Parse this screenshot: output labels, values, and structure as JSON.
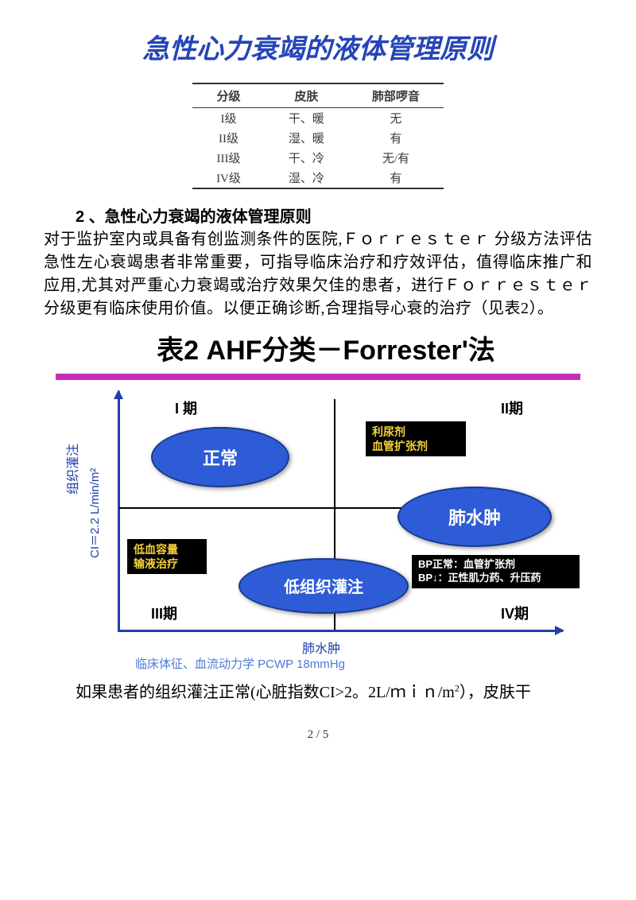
{
  "title": "急性心力衰竭的液体管理原则",
  "table1": {
    "headers": [
      "分级",
      "皮肤",
      "肺部啰音"
    ],
    "rows": [
      [
        "I级",
        "干、暖",
        "无"
      ],
      [
        "II级",
        "湿、暖",
        "有"
      ],
      [
        "III级",
        "干、冷",
        "无/有"
      ],
      [
        "IV级",
        "湿、冷",
        "有"
      ]
    ]
  },
  "section2_heading": "2 、急性心力衰竭的液体管理原则",
  "para1": "对于监护室内或具备有创监测条件的医院,Ｆｏｒｒｅｓｔｅｒ 分级方法评估急性左心衰竭患者非常重要，可指导临床治疗和疗效评估，值得临床推广和应用,尤其对严重心力衰竭或治疗效果欠佳的患者，进行Ｆｏｒｒｅｓｔｅｒ 分级更有临床使用价值。以便正确诊断,合理指导心衰的治疗（见表2）。",
  "chart": {
    "title": "表2  AHF分类－Forrester'法",
    "rule_color": "#c62fb5",
    "axis_color": "#1f3ea8",
    "y_axis_label_outer": "组织灌注",
    "y_axis_label_inner": "CI＝2.2 L/min/m²",
    "x_axis_label_center": "肺水肿",
    "x_axis_label_bottom": "临床体征、血流动力学  PCWP 18mmHg",
    "quadrant_labels": {
      "q1": "I 期",
      "q2": "II期",
      "q3": "III期",
      "q4": "IV期"
    },
    "ellipses": {
      "normal": {
        "text": "正常",
        "bg": "#2e5cd6"
      },
      "edema": {
        "text": "肺水肿",
        "bg": "#2e5cd6"
      },
      "lowperf": {
        "text": "低组织灌注",
        "bg": "#2e5cd6"
      }
    },
    "boxes": {
      "diuretic": {
        "line1": "利尿剂",
        "line2": "血管扩张剂",
        "text_color": "#f7d13a"
      },
      "hypovol": {
        "line1": "低血容量",
        "line2": "输液治疗",
        "text_color": "#f7d13a"
      },
      "bp": {
        "line1": "BP正常：血管扩张剂",
        "line2": "BP↓：正性肌力药、升压药",
        "text_color": "#ffffff"
      }
    }
  },
  "para2_prefix": "如果患者的组织灌注正常(心脏指数CI>2。2L/ｍｉｎ/m",
  "para2_sup": "2",
  "para2_suffix": "），皮肤干",
  "page_number": "2 / 5",
  "colors": {
    "title_color": "#2545b8",
    "rule_color": "#c62fb5",
    "axis_color": "#1f3ea8",
    "ellipse_bg": "#2e5cd6",
    "box_bg": "#000000",
    "yellow_text": "#f7d13a"
  }
}
